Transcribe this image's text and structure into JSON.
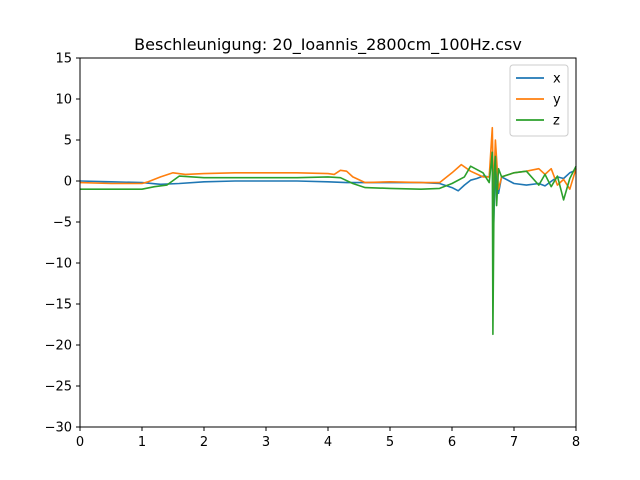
{
  "chart_data": {
    "type": "line",
    "title": "Beschleunigung: 20_Ioannis_2800cm_100Hz.csv",
    "xlabel": "",
    "ylabel": "",
    "xlim": [
      0,
      8
    ],
    "ylim": [
      -30,
      15
    ],
    "xticks": [
      0,
      1,
      2,
      3,
      4,
      5,
      6,
      7,
      8
    ],
    "yticks": [
      -30,
      -25,
      -20,
      -15,
      -10,
      -5,
      0,
      5,
      10,
      15
    ],
    "grid": false,
    "legend_position": "top-right",
    "series": [
      {
        "name": "x",
        "color": "#1f77b4",
        "points": [
          [
            0,
            0
          ],
          [
            0.5,
            -0.1
          ],
          [
            1.0,
            -0.2
          ],
          [
            1.3,
            -0.4
          ],
          [
            1.6,
            -0.3
          ],
          [
            2.0,
            -0.1
          ],
          [
            2.5,
            0
          ],
          [
            3.0,
            0
          ],
          [
            3.5,
            0
          ],
          [
            4.0,
            -0.1
          ],
          [
            4.3,
            -0.2
          ],
          [
            4.6,
            -0.2
          ],
          [
            5.0,
            -0.2
          ],
          [
            5.5,
            -0.2
          ],
          [
            5.8,
            -0.3
          ],
          [
            6.0,
            -0.8
          ],
          [
            6.1,
            -1.2
          ],
          [
            6.2,
            -0.5
          ],
          [
            6.3,
            0.1
          ],
          [
            6.4,
            0.3
          ],
          [
            6.5,
            0.6
          ],
          [
            6.6,
            0.5
          ],
          [
            6.65,
            3.5
          ],
          [
            6.67,
            -6
          ],
          [
            6.7,
            2.0
          ],
          [
            6.75,
            -1.5
          ],
          [
            6.8,
            0.5
          ],
          [
            7.0,
            -0.3
          ],
          [
            7.2,
            -0.5
          ],
          [
            7.4,
            -0.3
          ],
          [
            7.5,
            -0.6
          ],
          [
            7.7,
            0.5
          ],
          [
            7.8,
            0.3
          ],
          [
            7.9,
            1.0
          ],
          [
            8.0,
            1.3
          ]
        ]
      },
      {
        "name": "y",
        "color": "#ff7f0e",
        "points": [
          [
            0,
            -0.2
          ],
          [
            0.5,
            -0.3
          ],
          [
            1.0,
            -0.3
          ],
          [
            1.1,
            -0.1
          ],
          [
            1.3,
            0.5
          ],
          [
            1.5,
            1.0
          ],
          [
            1.7,
            0.8
          ],
          [
            2.0,
            0.9
          ],
          [
            2.5,
            1.0
          ],
          [
            3.0,
            1.0
          ],
          [
            3.5,
            1.0
          ],
          [
            4.0,
            0.9
          ],
          [
            4.1,
            0.8
          ],
          [
            4.2,
            1.3
          ],
          [
            4.3,
            1.2
          ],
          [
            4.4,
            0.5
          ],
          [
            4.6,
            -0.2
          ],
          [
            5.0,
            -0.1
          ],
          [
            5.5,
            -0.2
          ],
          [
            5.8,
            -0.2
          ],
          [
            6.0,
            1.0
          ],
          [
            6.15,
            2.0
          ],
          [
            6.3,
            1.2
          ],
          [
            6.5,
            0.5
          ],
          [
            6.6,
            0.5
          ],
          [
            6.65,
            6.5
          ],
          [
            6.67,
            -2
          ],
          [
            6.7,
            5.0
          ],
          [
            6.75,
            -1.0
          ],
          [
            6.8,
            0.5
          ],
          [
            7.0,
            1.0
          ],
          [
            7.2,
            1.2
          ],
          [
            7.4,
            1.5
          ],
          [
            7.5,
            0.8
          ],
          [
            7.6,
            1.5
          ],
          [
            7.7,
            -0.5
          ],
          [
            7.8,
            0.2
          ],
          [
            7.9,
            -1.0
          ],
          [
            8.0,
            1.5
          ]
        ]
      },
      {
        "name": "z",
        "color": "#2ca02c",
        "points": [
          [
            0,
            -1.0
          ],
          [
            0.5,
            -1.0
          ],
          [
            1.0,
            -1.0
          ],
          [
            1.2,
            -0.7
          ],
          [
            1.4,
            -0.5
          ],
          [
            1.6,
            0.6
          ],
          [
            2.0,
            0.4
          ],
          [
            2.5,
            0.4
          ],
          [
            3.0,
            0.4
          ],
          [
            3.5,
            0.4
          ],
          [
            4.0,
            0.5
          ],
          [
            4.2,
            0.4
          ],
          [
            4.4,
            -0.3
          ],
          [
            4.6,
            -0.8
          ],
          [
            5.0,
            -0.9
          ],
          [
            5.5,
            -1.0
          ],
          [
            5.8,
            -0.9
          ],
          [
            6.0,
            -0.3
          ],
          [
            6.2,
            0.5
          ],
          [
            6.3,
            1.8
          ],
          [
            6.5,
            1.0
          ],
          [
            6.6,
            -0.2
          ],
          [
            6.65,
            3.5
          ],
          [
            6.66,
            -18.7
          ],
          [
            6.68,
            1.0
          ],
          [
            6.7,
            3.0
          ],
          [
            6.72,
            -3.0
          ],
          [
            6.75,
            1.5
          ],
          [
            6.8,
            0.5
          ],
          [
            7.0,
            1.0
          ],
          [
            7.2,
            1.2
          ],
          [
            7.4,
            -0.5
          ],
          [
            7.5,
            0.8
          ],
          [
            7.6,
            -0.7
          ],
          [
            7.7,
            0.6
          ],
          [
            7.8,
            -2.3
          ],
          [
            7.9,
            0.3
          ],
          [
            8.0,
            1.8
          ]
        ]
      }
    ]
  }
}
